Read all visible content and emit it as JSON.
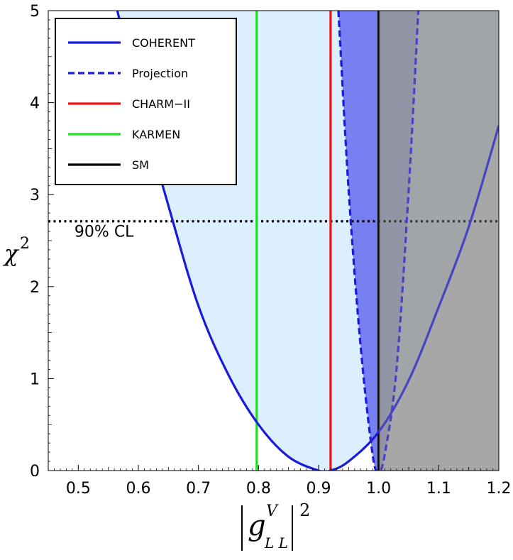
{
  "chart_data": {
    "type": "line",
    "x": [
      0.45,
      0.5,
      0.55,
      0.6,
      0.65,
      0.7,
      0.75,
      0.8,
      0.85,
      0.9,
      0.92,
      0.95,
      1.0,
      1.05,
      1.1,
      1.15,
      1.2
    ],
    "xlim": [
      0.45,
      1.2
    ],
    "ylim": [
      0,
      5
    ],
    "x_ticks": [
      0.5,
      0.6,
      0.7,
      0.8,
      0.9,
      1.0,
      1.1,
      1.2
    ],
    "x_tick_labels": [
      "0.5",
      "0.6",
      "0.7",
      "0.8",
      "0.9",
      "1.0",
      "1.1",
      "1.2"
    ],
    "y_ticks": [
      0,
      1,
      2,
      3,
      4,
      5
    ],
    "y_tick_labels": [
      "0",
      "1",
      "2",
      "3",
      "4",
      "5"
    ],
    "series": [
      {
        "name": "COHERENT",
        "style": "solid",
        "color": "#1a1adb",
        "x": [
          0.565,
          0.6,
          0.65,
          0.7,
          0.75,
          0.8,
          0.85,
          0.9,
          0.92,
          0.95,
          1.0,
          1.05,
          1.1,
          1.15,
          1.2
        ],
        "values": [
          5.0,
          4.05,
          2.88,
          1.79,
          1.04,
          0.5,
          0.15,
          0.0,
          0.0,
          0.1,
          0.42,
          0.98,
          1.78,
          2.65,
          3.75
        ]
      },
      {
        "name": "Projection",
        "style": "dashed",
        "color": "#1a1adb",
        "x": [
          0.933,
          0.95,
          0.97,
          0.99,
          1.0,
          1.01,
          1.03,
          1.05,
          1.066
        ],
        "values": [
          5.0,
          3.05,
          1.35,
          0.17,
          0.0,
          0.17,
          1.12,
          3.05,
          5.0
        ]
      }
    ],
    "vertical_lines": [
      {
        "name": "CHARM-II",
        "x": 0.92,
        "color": "#ee1111"
      },
      {
        "name": "KARMEN",
        "x": 0.797,
        "color": "#22dd22"
      },
      {
        "name": "SM",
        "x": 1.0,
        "color": "#000000"
      }
    ],
    "horizontal_lines": [
      {
        "name": "90% CL",
        "y": 2.71,
        "style": "dotted"
      }
    ],
    "shaded_regions": [
      {
        "name": "light-blue-allowed",
        "color": "#dcefff"
      },
      {
        "name": "projection-band",
        "color": "#6b72f0"
      },
      {
        "name": "gray-excluded",
        "x_min": 1.0,
        "color": "#999999"
      }
    ],
    "ylabel": "χ²",
    "xlabel": "|g^V_LL|²",
    "xlabel_parts": {
      "base": "g",
      "sup": "V",
      "sub": "L L",
      "power": "2"
    },
    "ylabel_parts": {
      "base": "χ",
      "power": "2"
    },
    "legend": {
      "placement": "top-left",
      "entries": [
        {
          "label": "COHERENT",
          "style": "solid",
          "color": "#1a1adb"
        },
        {
          "label": "Projection",
          "style": "dashed",
          "color": "#1a1adb"
        },
        {
          "label": "CHARM−II",
          "style": "solid",
          "color": "#ee1111"
        },
        {
          "label": "KARMEN",
          "style": "solid",
          "color": "#22dd22"
        },
        {
          "label": "SM",
          "style": "solid",
          "color": "#000000"
        }
      ]
    },
    "annotations": [
      {
        "text": "90% CL",
        "x": 0.47,
        "y": 2.48
      }
    ],
    "grid": false
  }
}
